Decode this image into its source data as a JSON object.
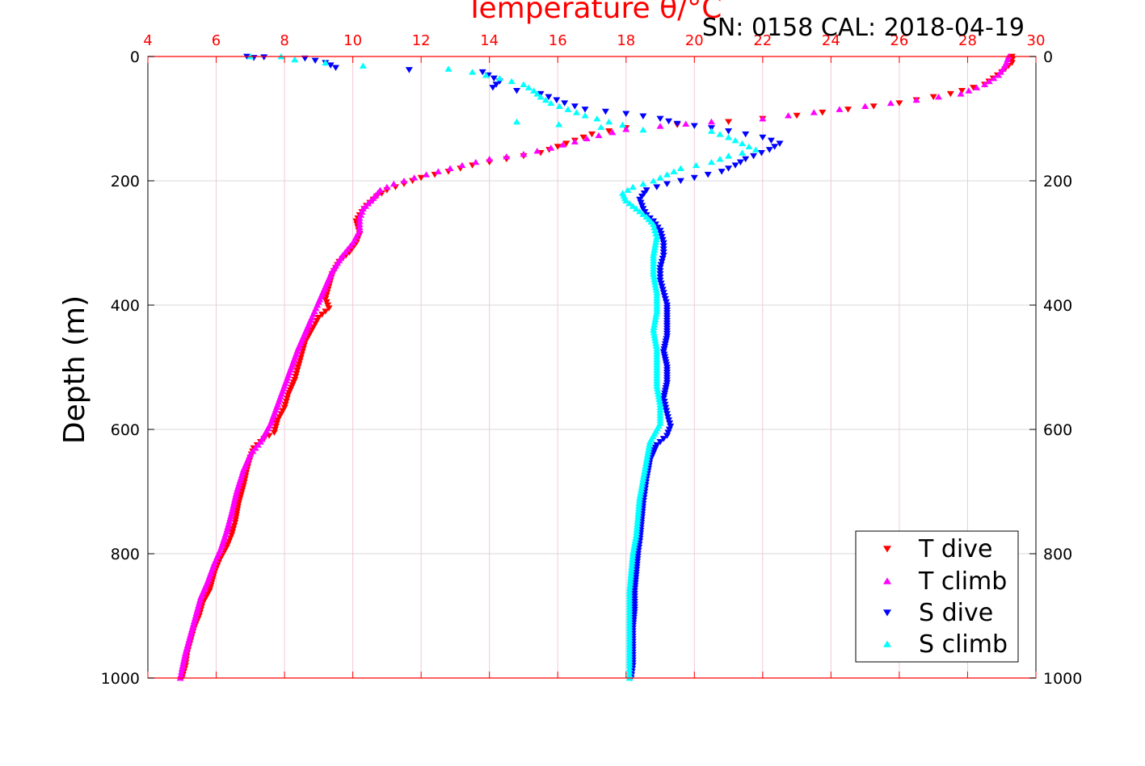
{
  "colors": {
    "t_dive": "#ff0000",
    "t_climb": "#ff00ff",
    "s_dive": "#0000ff",
    "s_climb": "#00ffff",
    "top_axis": "#ff0000",
    "grid": "#d9d9d9",
    "top_grid": "#f2c9d8",
    "text": "#000000"
  },
  "chart_data": {
    "type": "scatter",
    "title": "Temperature θ/°C",
    "subtitle": "SN: 0158  CAL: 2018-04-19",
    "ylabel": "Depth (m)",
    "xlabel": "",
    "xlim": [
      4,
      30
    ],
    "ylim": [
      1000,
      0
    ],
    "x_ticks": [
      "4",
      "6",
      "8",
      "10",
      "12",
      "14",
      "16",
      "18",
      "20",
      "22",
      "24",
      "26",
      "28",
      "30"
    ],
    "y_ticks": [
      "0",
      "200",
      "400",
      "600",
      "800",
      "1000"
    ],
    "grid": true,
    "legend_position": "bottom-right",
    "series": [
      {
        "name": "T dive",
        "marker": "triangle-down",
        "color": "#ff0000",
        "points": [
          [
            29.3,
            0
          ],
          [
            29.3,
            10
          ],
          [
            29.0,
            25
          ],
          [
            28.5,
            45
          ],
          [
            27.5,
            60
          ],
          [
            26,
            75
          ],
          [
            24.5,
            85
          ],
          [
            23,
            95
          ],
          [
            22,
            100
          ],
          [
            21,
            105
          ],
          [
            19.5,
            110
          ],
          [
            18,
            115
          ],
          [
            17,
            125
          ],
          [
            16.5,
            135
          ],
          [
            16,
            145
          ],
          [
            15.5,
            155
          ],
          [
            14.5,
            165
          ],
          [
            13.5,
            175
          ],
          [
            12.8,
            185
          ],
          [
            12,
            195
          ],
          [
            11.5,
            205
          ],
          [
            11,
            215
          ],
          [
            10.7,
            225
          ],
          [
            10.4,
            240
          ],
          [
            10.2,
            255
          ],
          [
            10.1,
            265
          ],
          [
            10.2,
            285
          ],
          [
            10.1,
            300
          ],
          [
            9.9,
            315
          ],
          [
            9.6,
            330
          ],
          [
            9.4,
            350
          ],
          [
            9.3,
            370
          ],
          [
            9.2,
            390
          ],
          [
            9.3,
            405
          ],
          [
            9.0,
            420
          ],
          [
            8.8,
            440
          ],
          [
            8.6,
            460
          ],
          [
            8.5,
            480
          ],
          [
            8.4,
            500
          ],
          [
            8.3,
            520
          ],
          [
            8.1,
            545
          ],
          [
            8.0,
            565
          ],
          [
            7.8,
            585
          ],
          [
            7.7,
            605
          ],
          [
            7.4,
            615
          ],
          [
            7.1,
            630
          ],
          [
            7.0,
            645
          ],
          [
            6.9,
            665
          ],
          [
            6.8,
            690
          ],
          [
            6.65,
            720
          ],
          [
            6.55,
            750
          ],
          [
            6.45,
            770
          ],
          [
            6.3,
            790
          ],
          [
            6.1,
            810
          ],
          [
            5.95,
            830
          ],
          [
            5.8,
            860
          ],
          [
            5.6,
            880
          ],
          [
            5.5,
            900
          ],
          [
            5.35,
            920
          ],
          [
            5.25,
            940
          ],
          [
            5.15,
            960
          ],
          [
            5.1,
            980
          ],
          [
            5.0,
            1000
          ]
        ]
      },
      {
        "name": "T climb",
        "marker": "triangle-up",
        "color": "#ff00ff",
        "points": [
          [
            29.2,
            0
          ],
          [
            29.1,
            15
          ],
          [
            28.9,
            30
          ],
          [
            28.5,
            45
          ],
          [
            27.8,
            60
          ],
          [
            26.5,
            70
          ],
          [
            25,
            80
          ],
          [
            23.5,
            90
          ],
          [
            22,
            100
          ],
          [
            20.5,
            105
          ],
          [
            19,
            112
          ],
          [
            18,
            117
          ],
          [
            17.2,
            127
          ],
          [
            16.5,
            137
          ],
          [
            15.8,
            147
          ],
          [
            15,
            157
          ],
          [
            14,
            165
          ],
          [
            13.2,
            175
          ],
          [
            12.5,
            185
          ],
          [
            11.8,
            195
          ],
          [
            11.2,
            205
          ],
          [
            10.8,
            215
          ],
          [
            10.6,
            228
          ],
          [
            10.3,
            245
          ],
          [
            10.2,
            260
          ],
          [
            10.2,
            280
          ],
          [
            10.0,
            300
          ],
          [
            9.7,
            320
          ],
          [
            9.4,
            345
          ],
          [
            9.2,
            370
          ],
          [
            9.0,
            395
          ],
          [
            8.8,
            420
          ],
          [
            8.6,
            445
          ],
          [
            8.4,
            470
          ],
          [
            8.2,
            500
          ],
          [
            8.0,
            530
          ],
          [
            7.8,
            560
          ],
          [
            7.6,
            590
          ],
          [
            7.3,
            620
          ],
          [
            7.0,
            640
          ],
          [
            6.8,
            665
          ],
          [
            6.6,
            700
          ],
          [
            6.45,
            735
          ],
          [
            6.3,
            765
          ],
          [
            6.15,
            790
          ],
          [
            5.95,
            815
          ],
          [
            5.75,
            845
          ],
          [
            5.55,
            870
          ],
          [
            5.4,
            900
          ],
          [
            5.25,
            930
          ],
          [
            5.1,
            960
          ],
          [
            5.0,
            985
          ],
          [
            4.95,
            1000
          ]
        ]
      },
      {
        "name": "S dive",
        "marker": "triangle-down",
        "color": "#0000ff",
        "points": [
          [
            6.9,
            0
          ],
          [
            7.1,
            2
          ],
          [
            7.4,
            1
          ],
          [
            8.6,
            3
          ],
          [
            9.2,
            10
          ],
          [
            9.5,
            18
          ],
          [
            13.8,
            25
          ],
          [
            14.3,
            40
          ],
          [
            14.1,
            50
          ],
          [
            15.5,
            60
          ],
          [
            16.2,
            75
          ],
          [
            16.8,
            85
          ],
          [
            18,
            92
          ],
          [
            19,
            100
          ],
          [
            19.5,
            108
          ],
          [
            20.5,
            115
          ],
          [
            21.5,
            125
          ],
          [
            22,
            130
          ],
          [
            22.5,
            140
          ],
          [
            22.2,
            150
          ],
          [
            21.5,
            165
          ],
          [
            21.2,
            175
          ],
          [
            20.8,
            185
          ],
          [
            20,
            195
          ],
          [
            19.2,
            205
          ],
          [
            18.6,
            215
          ],
          [
            18.4,
            230
          ],
          [
            18.5,
            245
          ],
          [
            18.6,
            255
          ],
          [
            18.8,
            265
          ],
          [
            19.0,
            280
          ],
          [
            19.1,
            300
          ],
          [
            19.1,
            320
          ],
          [
            19.0,
            340
          ],
          [
            19.0,
            360
          ],
          [
            19.1,
            380
          ],
          [
            19.2,
            400
          ],
          [
            19.2,
            425
          ],
          [
            19.2,
            450
          ],
          [
            19.1,
            475
          ],
          [
            19.2,
            500
          ],
          [
            19.2,
            525
          ],
          [
            19.1,
            550
          ],
          [
            19.2,
            575
          ],
          [
            19.3,
            595
          ],
          [
            19.2,
            610
          ],
          [
            18.9,
            625
          ],
          [
            18.7,
            650
          ],
          [
            18.6,
            680
          ],
          [
            18.55,
            700
          ],
          [
            18.5,
            720
          ],
          [
            18.45,
            750
          ],
          [
            18.4,
            780
          ],
          [
            18.35,
            800
          ],
          [
            18.3,
            830
          ],
          [
            18.25,
            860
          ],
          [
            18.25,
            890
          ],
          [
            18.2,
            920
          ],
          [
            18.2,
            950
          ],
          [
            18.2,
            980
          ],
          [
            18.15,
            1000
          ]
        ]
      },
      {
        "name": "S climb",
        "marker": "triangle-up",
        "color": "#00ffff",
        "points": [
          [
            7.0,
            0
          ],
          [
            7.9,
            0
          ],
          [
            8.3,
            5
          ],
          [
            9.2,
            10
          ],
          [
            10.3,
            15
          ],
          [
            12.8,
            20
          ],
          [
            13.5,
            25
          ],
          [
            14.3,
            35
          ],
          [
            15.0,
            45
          ],
          [
            15.3,
            55
          ],
          [
            15.5,
            65
          ],
          [
            15.8,
            75
          ],
          [
            16.3,
            85
          ],
          [
            16.8,
            95
          ],
          [
            17.5,
            105
          ],
          [
            17.9,
            110
          ],
          [
            14.8,
            105
          ],
          [
            18.5,
            118
          ],
          [
            20.5,
            120
          ],
          [
            21,
            130
          ],
          [
            21.4,
            140
          ],
          [
            21.8,
            150
          ],
          [
            21.0,
            160
          ],
          [
            20.5,
            170
          ],
          [
            19.6,
            180
          ],
          [
            19.2,
            190
          ],
          [
            18.8,
            200
          ],
          [
            18.2,
            210
          ],
          [
            17.9,
            220
          ],
          [
            18.0,
            232
          ],
          [
            18.3,
            245
          ],
          [
            18.6,
            258
          ],
          [
            18.8,
            270
          ],
          [
            18.9,
            290
          ],
          [
            18.8,
            320
          ],
          [
            18.8,
            350
          ],
          [
            18.9,
            380
          ],
          [
            18.9,
            410
          ],
          [
            18.8,
            440
          ],
          [
            18.9,
            470
          ],
          [
            18.9,
            500
          ],
          [
            18.9,
            530
          ],
          [
            19.0,
            560
          ],
          [
            19.0,
            590
          ],
          [
            18.7,
            620
          ],
          [
            18.6,
            650
          ],
          [
            18.5,
            680
          ],
          [
            18.4,
            710
          ],
          [
            18.35,
            740
          ],
          [
            18.3,
            770
          ],
          [
            18.2,
            800
          ],
          [
            18.15,
            830
          ],
          [
            18.1,
            860
          ],
          [
            18.1,
            890
          ],
          [
            18.1,
            920
          ],
          [
            18.1,
            950
          ],
          [
            18.1,
            980
          ],
          [
            18.1,
            1000
          ]
        ]
      }
    ]
  }
}
